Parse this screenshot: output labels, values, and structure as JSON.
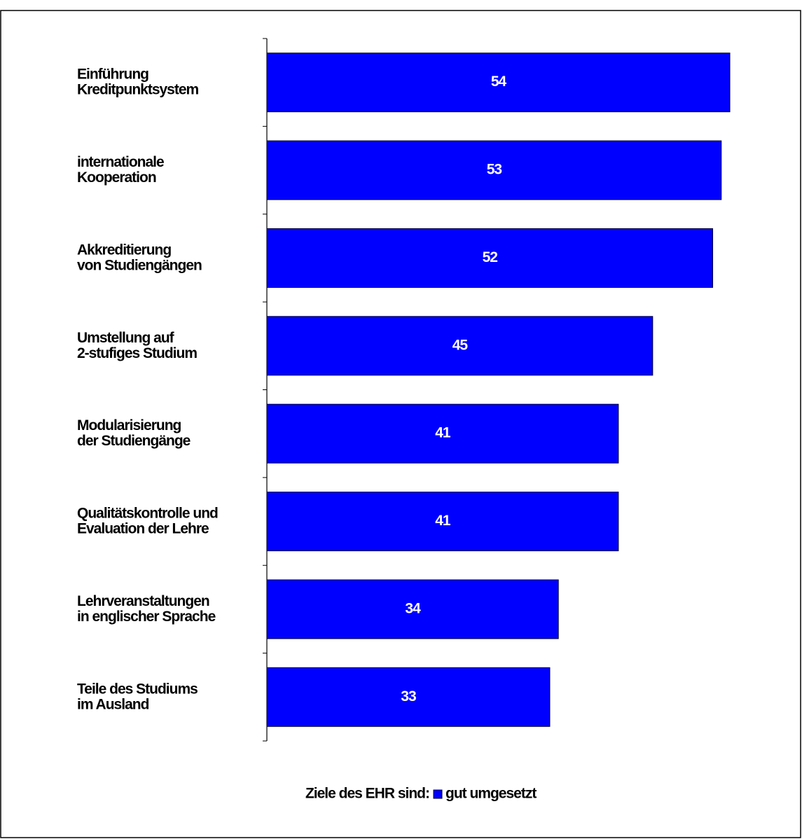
{
  "chart_data": {
    "type": "bar",
    "orientation": "horizontal",
    "categories": [
      "Einführung\nKreditpunktsystem",
      "internationale\nKooperation",
      "Akkreditierung\nvon Studiengängen",
      "Umstellung auf\n2-stufiges Studium",
      "Modularisierung\nder Studiengänge",
      "Qualitätskontrolle und\nEvaluation der Lehre",
      "Lehrveranstaltungen\nin englischer Sprache",
      "Teile des Studiums\nim Ausland"
    ],
    "series": [
      {
        "name": "gut umgesetzt",
        "color": "#0000ff",
        "values": [
          54,
          53,
          52,
          45,
          41,
          41,
          34,
          33
        ]
      }
    ],
    "legend_title": "Ziele des EHR sind:",
    "legend": "bottom"
  }
}
